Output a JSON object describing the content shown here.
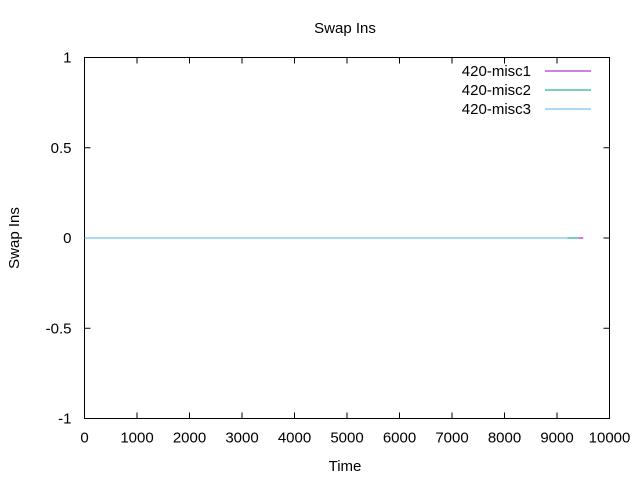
{
  "chart_data": {
    "type": "line",
    "title": "Swap Ins",
    "xlabel": "Time",
    "ylabel": "Swap Ins",
    "xlim": [
      0,
      10000
    ],
    "ylim": [
      -1,
      1
    ],
    "x_ticks": [
      0,
      1000,
      2000,
      3000,
      4000,
      5000,
      6000,
      7000,
      8000,
      9000,
      10000
    ],
    "y_ticks": [
      -1,
      -0.5,
      0,
      0.5,
      1
    ],
    "grid": false,
    "legend_position": "top-right",
    "series": [
      {
        "name": "420-misc1",
        "color": "#9400d3",
        "x": [
          9200,
          9500
        ],
        "y": [
          0,
          0
        ]
      },
      {
        "name": "420-misc2",
        "color": "#009e73",
        "x": [
          0,
          9400
        ],
        "y": [
          0,
          0
        ]
      },
      {
        "name": "420-misc3",
        "color": "#56b4e9",
        "x": [
          0,
          9200
        ],
        "y": [
          0,
          0
        ]
      }
    ]
  }
}
